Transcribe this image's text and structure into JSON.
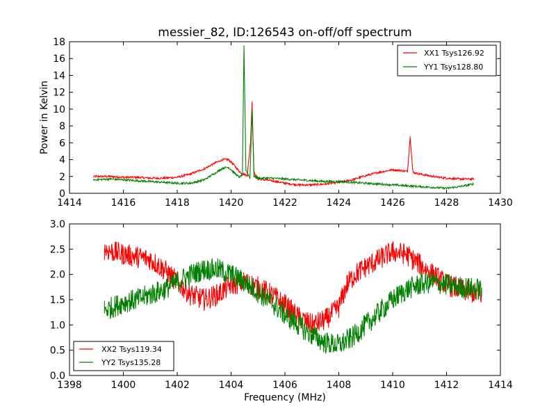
{
  "chart_data": [
    {
      "type": "line",
      "title": "messier_82, ID:126543 on-off/off spectrum",
      "xlabel": "",
      "ylabel": "Power in Kelvin",
      "xlim": [
        1414,
        1430
      ],
      "ylim": [
        0,
        18
      ],
      "xticks": [
        1414,
        1416,
        1418,
        1420,
        1422,
        1424,
        1426,
        1428,
        1430
      ],
      "yticks": [
        0,
        2,
        4,
        6,
        8,
        10,
        12,
        14,
        16,
        18
      ],
      "grid": false,
      "legend": "top-right",
      "series": [
        {
          "name": "XX1 Tsys126.92",
          "color": "#ff0000",
          "x": [
            1414.9,
            1415.5,
            1416.0,
            1416.5,
            1417.0,
            1417.5,
            1418.0,
            1418.5,
            1419.0,
            1419.4,
            1419.7,
            1419.9,
            1420.1,
            1420.3,
            1420.45,
            1420.6,
            1420.72,
            1420.78,
            1420.85,
            1421.0,
            1421.5,
            1422.0,
            1422.5,
            1423.0,
            1423.5,
            1424.0,
            1424.5,
            1425.0,
            1425.5,
            1426.0,
            1426.3,
            1426.55,
            1426.65,
            1426.75,
            1427.0,
            1427.5,
            1428.0,
            1428.5,
            1429.0
          ],
          "y": [
            2.0,
            2.0,
            1.9,
            1.9,
            1.8,
            1.8,
            1.9,
            2.3,
            2.9,
            3.6,
            4.0,
            4.0,
            3.4,
            2.6,
            2.3,
            2.1,
            6.0,
            10.9,
            2.5,
            1.7,
            1.5,
            1.2,
            1.0,
            1.0,
            1.1,
            1.3,
            1.6,
            2.1,
            2.5,
            2.8,
            2.7,
            2.6,
            6.7,
            2.5,
            2.3,
            2.0,
            1.8,
            1.7,
            1.7
          ]
        },
        {
          "name": "YY1 Tsys128.80",
          "color": "#008000",
          "x": [
            1414.9,
            1415.5,
            1416.0,
            1416.5,
            1417.0,
            1417.5,
            1418.0,
            1418.5,
            1419.0,
            1419.4,
            1419.7,
            1419.9,
            1420.1,
            1420.3,
            1420.42,
            1420.48,
            1420.55,
            1420.7,
            1420.78,
            1420.85,
            1421.0,
            1421.5,
            1422.0,
            1422.5,
            1423.0,
            1423.5,
            1424.0,
            1424.5,
            1425.0,
            1425.5,
            1426.0,
            1426.5,
            1427.0,
            1427.5,
            1428.0,
            1428.5,
            1429.0
          ],
          "y": [
            1.6,
            1.7,
            1.6,
            1.5,
            1.4,
            1.3,
            1.2,
            1.2,
            1.6,
            2.4,
            3.0,
            3.1,
            2.5,
            1.9,
            2.2,
            17.5,
            2.8,
            1.8,
            10.0,
            2.0,
            1.8,
            1.8,
            1.7,
            1.6,
            1.5,
            1.4,
            1.4,
            1.3,
            1.2,
            1.1,
            1.0,
            0.9,
            0.8,
            0.7,
            0.6,
            0.8,
            1.1
          ]
        }
      ]
    },
    {
      "type": "line",
      "title": "",
      "xlabel": "Frequency (MHz)",
      "ylabel": "",
      "xlim": [
        1398,
        1414
      ],
      "ylim": [
        0.0,
        3.0
      ],
      "xticks": [
        1398,
        1400,
        1402,
        1404,
        1406,
        1408,
        1410,
        1412,
        1414
      ],
      "yticks": [
        "0.0",
        "0.5",
        "1.0",
        "1.5",
        "2.0",
        "2.5",
        "3.0"
      ],
      "grid": false,
      "legend": "bottom-left",
      "series": [
        {
          "name": "XX2 Tsys119.34",
          "color": "#ff0000",
          "x": [
            1399.3,
            1399.6,
            1400.0,
            1400.5,
            1401.0,
            1401.5,
            1402.0,
            1402.5,
            1403.0,
            1403.5,
            1404.0,
            1404.5,
            1405.0,
            1405.5,
            1406.0,
            1406.5,
            1407.0,
            1407.5,
            1408.0,
            1408.3,
            1408.6,
            1409.0,
            1409.5,
            1410.0,
            1410.5,
            1411.0,
            1411.5,
            1412.0,
            1412.5,
            1413.3
          ],
          "y": [
            2.5,
            2.45,
            2.4,
            2.35,
            2.3,
            2.1,
            1.85,
            1.6,
            1.5,
            1.6,
            1.8,
            1.85,
            1.75,
            1.6,
            1.4,
            1.15,
            1.0,
            1.1,
            1.35,
            1.8,
            2.0,
            2.15,
            2.3,
            2.45,
            2.4,
            2.2,
            2.0,
            1.8,
            1.7,
            1.6
          ]
        },
        {
          "name": "YY2 Tsys135.28",
          "color": "#008000",
          "x": [
            1399.3,
            1399.6,
            1400.0,
            1400.5,
            1401.0,
            1401.5,
            1402.0,
            1402.5,
            1403.0,
            1403.5,
            1404.0,
            1404.5,
            1405.0,
            1405.5,
            1406.0,
            1406.5,
            1407.0,
            1407.5,
            1408.0,
            1408.5,
            1409.0,
            1409.5,
            1410.0,
            1410.5,
            1411.0,
            1411.5,
            1412.0,
            1412.5,
            1413.3
          ],
          "y": [
            1.3,
            1.35,
            1.45,
            1.5,
            1.6,
            1.7,
            1.85,
            2.0,
            2.1,
            2.1,
            2.0,
            1.85,
            1.65,
            1.45,
            1.2,
            1.0,
            0.8,
            0.65,
            0.6,
            0.75,
            1.0,
            1.25,
            1.5,
            1.7,
            1.8,
            1.85,
            1.8,
            1.75,
            1.7
          ]
        }
      ]
    }
  ]
}
